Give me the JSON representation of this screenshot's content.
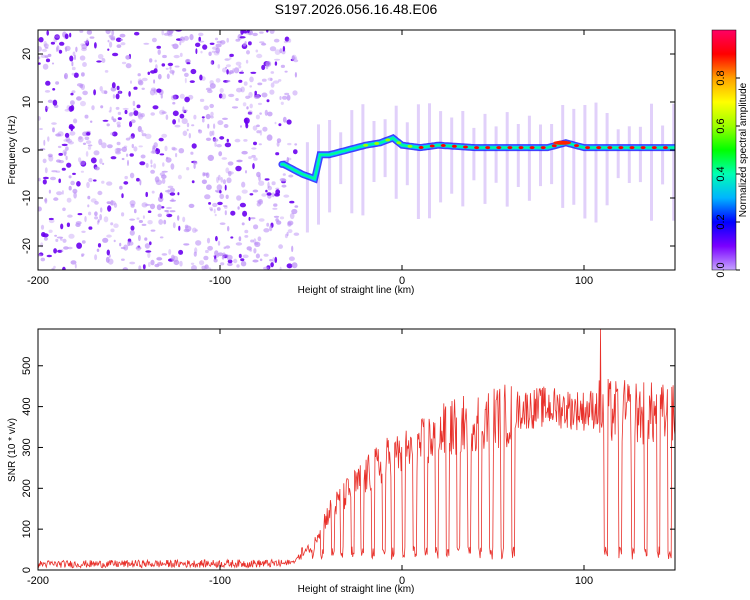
{
  "title": "S197.2026.056.16.48.E06",
  "chart_data": [
    {
      "type": "heatmap",
      "xlabel": "Height of straight line (km)",
      "ylabel": "Frequency (Hz)",
      "xlim": [
        -200,
        150
      ],
      "ylim": [
        -25,
        25
      ],
      "xticks": [
        -200,
        -100,
        0,
        100
      ],
      "yticks": [
        -20,
        -10,
        0,
        10,
        20
      ],
      "colorbar": {
        "label": "Normalized spectral amplitude",
        "range": [
          0,
          1
        ],
        "ticks": [
          0.0,
          0.2,
          0.4,
          0.6,
          0.8
        ],
        "colors": [
          "#c5a4ff",
          "#7a00ff",
          "#0000ff",
          "#00b4ff",
          "#00ffb4",
          "#00ff00",
          "#9cff00",
          "#ffff00",
          "#ffa000",
          "#ff0000",
          "#ff0064"
        ]
      },
      "noise_region_x": [
        -200,
        -60
      ],
      "signal_trace": {
        "x": [
          -65,
          -55,
          -48,
          -45,
          -40,
          -30,
          -20,
          -12,
          -5,
          0,
          10,
          20,
          40,
          60,
          80,
          90,
          100,
          120,
          150
        ],
        "freq": [
          -3,
          -5,
          -6,
          -1,
          -1,
          0,
          1,
          1.5,
          2.5,
          1,
          0.5,
          1,
          0.5,
          0.5,
          0.5,
          1.5,
          0.5,
          0.5,
          0.5
        ]
      }
    },
    {
      "type": "line",
      "xlabel": "Height of straight line (km)",
      "ylabel": "SNR (10 * v/v)",
      "xlim": [
        -200,
        150
      ],
      "ylim": [
        0,
        590
      ],
      "xticks": [
        -200,
        -100,
        0,
        100
      ],
      "yticks": [
        0,
        100,
        200,
        300,
        400,
        500
      ],
      "color": "#e8302a",
      "envelope": {
        "x": [
          -200,
          -60,
          -50,
          -40,
          -30,
          -20,
          -10,
          0,
          10,
          20,
          30,
          40,
          50,
          60,
          70,
          80,
          90,
          100,
          110,
          120,
          130,
          140,
          150
        ],
        "y": [
          18,
          20,
          60,
          150,
          200,
          240,
          280,
          300,
          320,
          350,
          370,
          385,
          395,
          400,
          405,
          410,
          405,
          400,
          410,
          405,
          405,
          400,
          395
        ]
      },
      "dips_x": [
        -55,
        -49,
        -44,
        -38,
        -33,
        -27,
        -22,
        -16,
        -10,
        -5,
        1,
        7,
        13,
        19,
        25,
        31,
        37,
        43,
        49,
        55,
        61,
        112,
        120,
        127,
        134,
        141,
        147
      ],
      "dip_level": 42,
      "peak": {
        "x": 109,
        "y": 590
      }
    }
  ]
}
